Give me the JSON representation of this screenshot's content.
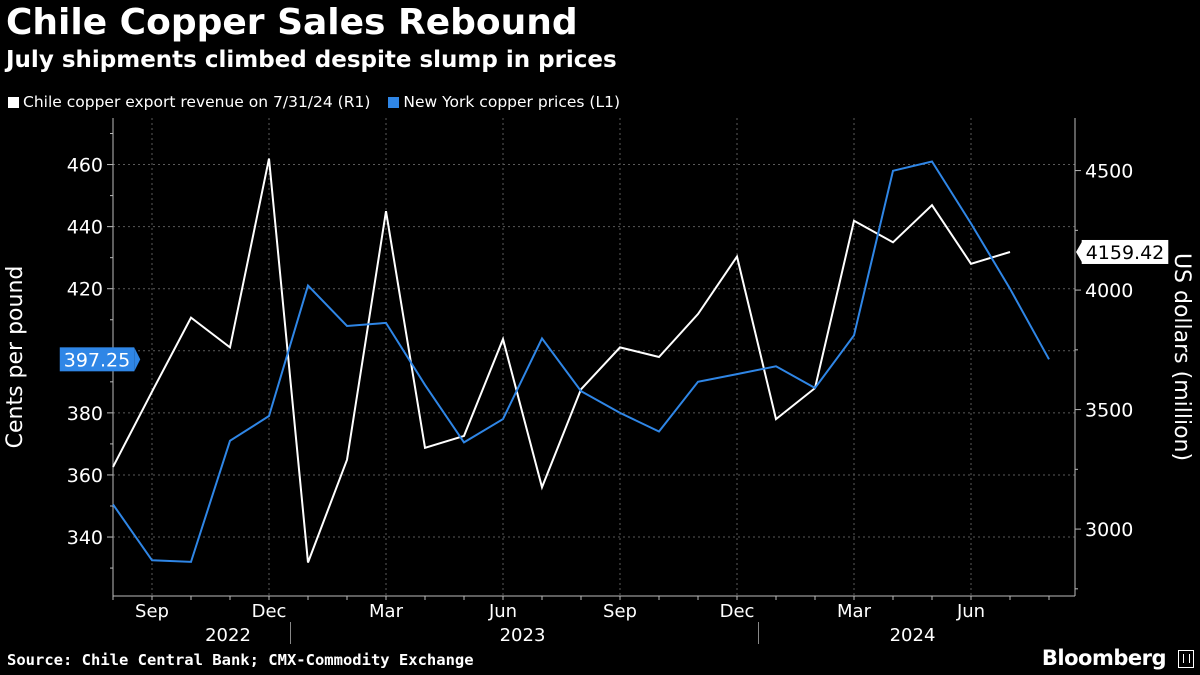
{
  "header": {
    "title": "Chile Copper Sales Rebound",
    "subtitle": "July shipments climbed despite slump in prices"
  },
  "legend": [
    {
      "label": "Chile copper export revenue on 7/31/24 (R1)",
      "color": "#ffffff"
    },
    {
      "label": "New York copper prices (L1)",
      "color": "#2f86e6"
    }
  ],
  "footer": {
    "source": "Source: Chile Central Bank; CMX-Commodity Exchange",
    "brand": "Bloomberg"
  },
  "chart_data": {
    "type": "line",
    "x": [
      "2022-08",
      "2022-09",
      "2022-10",
      "2022-11",
      "2022-12",
      "2023-01",
      "2023-02",
      "2023-03",
      "2023-04",
      "2023-05",
      "2023-06",
      "2023-07",
      "2023-08",
      "2023-09",
      "2023-10",
      "2023-11",
      "2023-12",
      "2024-01",
      "2024-02",
      "2024-03",
      "2024-04",
      "2024-05",
      "2024-06",
      "2024-07",
      "2024-08"
    ],
    "x_tick_labels": [
      {
        "x": "2022-09",
        "label": "Sep"
      },
      {
        "x": "2022-12",
        "label": "Dec"
      },
      {
        "x": "2023-03",
        "label": "Mar"
      },
      {
        "x": "2023-06",
        "label": "Jun"
      },
      {
        "x": "2023-09",
        "label": "Sep"
      },
      {
        "x": "2023-12",
        "label": "Dec"
      },
      {
        "x": "2024-03",
        "label": "Mar"
      },
      {
        "x": "2024-06",
        "label": "Jun"
      }
    ],
    "year_labels": [
      {
        "label": "2022",
        "from": "2022-08",
        "to": "2022-12"
      },
      {
        "label": "2023",
        "from": "2023-01",
        "to": "2023-12"
      },
      {
        "label": "2024",
        "from": "2024-01",
        "to": "2024-08"
      }
    ],
    "series": [
      {
        "name": "Chile copper export revenue on 7/31/24",
        "axis": "right",
        "color": "#ffffff",
        "values": [
          3260,
          3575,
          3885,
          3760,
          4550,
          2860,
          3290,
          4330,
          3340,
          3390,
          3795,
          3175,
          3585,
          3760,
          3720,
          3900,
          4140,
          3460,
          3590,
          4290,
          4200,
          4355,
          4110,
          4159.42,
          null
        ]
      },
      {
        "name": "New York copper prices",
        "axis": "left",
        "color": "#2f86e6",
        "values": [
          350.5,
          332.5,
          332,
          371,
          379,
          421,
          408,
          409,
          389,
          370.5,
          378,
          404,
          387,
          380,
          374,
          390,
          392.5,
          395,
          388,
          405,
          458,
          461,
          441,
          420,
          397.25
        ]
      }
    ],
    "last_value_labels": {
      "left": "397.25",
      "right": "4159.42"
    },
    "y_left": {
      "label": "Cents per pound",
      "ticks": [
        340,
        360,
        380,
        400,
        420,
        440,
        460
      ],
      "tick_labels": [
        "340",
        "360",
        "380",
        "",
        "420",
        "440",
        "460"
      ],
      "range": [
        321,
        475
      ]
    },
    "y_right": {
      "label": "US dollars (million)",
      "ticks": [
        3000,
        3500,
        4000,
        4500
      ],
      "range": [
        2720,
        4720
      ]
    },
    "grid": true
  }
}
